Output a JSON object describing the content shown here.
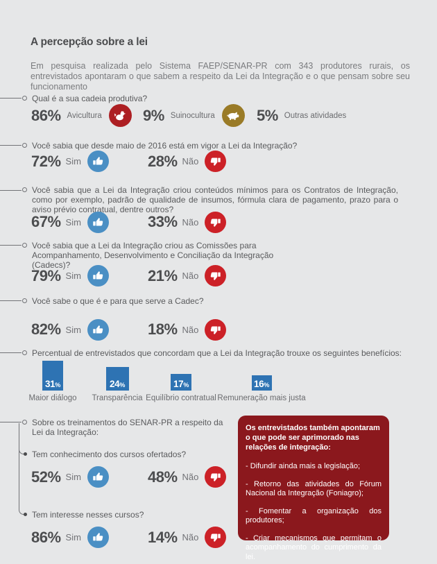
{
  "header": {
    "title": "A percepção sobre a lei",
    "intro": "Em pesquisa realizada pelo Sistema FAEP/SENAR-PR com 343 produtores rurais, os entrevistados apontaram o que sabem a respeito da Lei da Integração e o que pensam sobre seu funcionamento"
  },
  "labels": {
    "yes": "Sim",
    "no": "Não"
  },
  "q1": {
    "text": "Qual é a sua cadeia produtiva?",
    "answers": [
      {
        "value": "86%",
        "label": "Avicultura",
        "icon": "chicken-icon",
        "icon_color": "#ad1f23"
      },
      {
        "value": "9%",
        "label": "Suinocultura",
        "icon": "pig-icon",
        "icon_color": "#9a7b27"
      },
      {
        "value": "5%",
        "label": "Outras atividades",
        "icon": null
      }
    ]
  },
  "q2": {
    "text": "Você sabia que desde maio de 2016 está em vigor a Lei da Integração?",
    "yes": "72%",
    "no": "28%"
  },
  "q3": {
    "text": "Você sabia que a Lei da Integração criou conteúdos mínimos para os Contratos de Integração, como por exemplo, padrão de qualidade de insumos, fórmula clara de pagamento, prazo para o aviso prévio contratual, dentre outros?",
    "yes": "67%",
    "no": "33%"
  },
  "q4": {
    "text": "Você sabia que a Lei da Integração criou as Comissões para Acompanhamento, Desenvolvimento e Conciliação da Integração (Cadecs)?",
    "yes": "79%",
    "no": "21%"
  },
  "q5": {
    "text": "Você sabe o que é e para que serve a Cadec?",
    "yes": "82%",
    "no": "18%"
  },
  "chart_data": {
    "type": "bar",
    "title": "Percentual de entrevistados que concordam que a Lei da Integração trouxe os seguintes benefícios:",
    "categories": [
      "Maior diálogo",
      "Transparência",
      "Equilíbrio contratual",
      "Remuneração mais justa"
    ],
    "values": [
      31,
      24,
      17,
      16
    ],
    "unit": "%",
    "bar_color": "#2e73b3",
    "value_label_color": "#ffffff",
    "ylim": [
      0,
      35
    ],
    "grid": false,
    "legend": "none"
  },
  "training": {
    "text": "Sobre os treinamentos do SENAR-PR a respeito da Lei da Integração:",
    "sub1": {
      "text": "Tem conhecimento dos cursos ofertados?",
      "yes": "52%",
      "no": "48%"
    },
    "sub2": {
      "text": "Tem interesse nesses cursos?",
      "yes": "86%",
      "no": "14%"
    }
  },
  "improvements": {
    "heading": "Os entrevistados também apontaram o que pode ser aprimorado nas relações de integração:",
    "items": [
      "- Difundir ainda mais a legislação;",
      "- Retorno das atividades do Fórum Nacional da Integração (Foniagro);",
      "- Fomentar a organização dos produtores;",
      "- Criar mecanismos que permitam o acompanha­mento do cumprimento da lei."
    ]
  },
  "colors": {
    "background": "#e6e7e8",
    "thumb_up_blue": "#4a8fc4",
    "thumb_down_red": "#cc2127",
    "bar_blue": "#2e73b3",
    "box_red": "#8b181d",
    "chicken_red": "#ad1f23",
    "pig_olive": "#9a7b27",
    "text_dark": "#4c4d4f",
    "text_gray": "#717276"
  }
}
